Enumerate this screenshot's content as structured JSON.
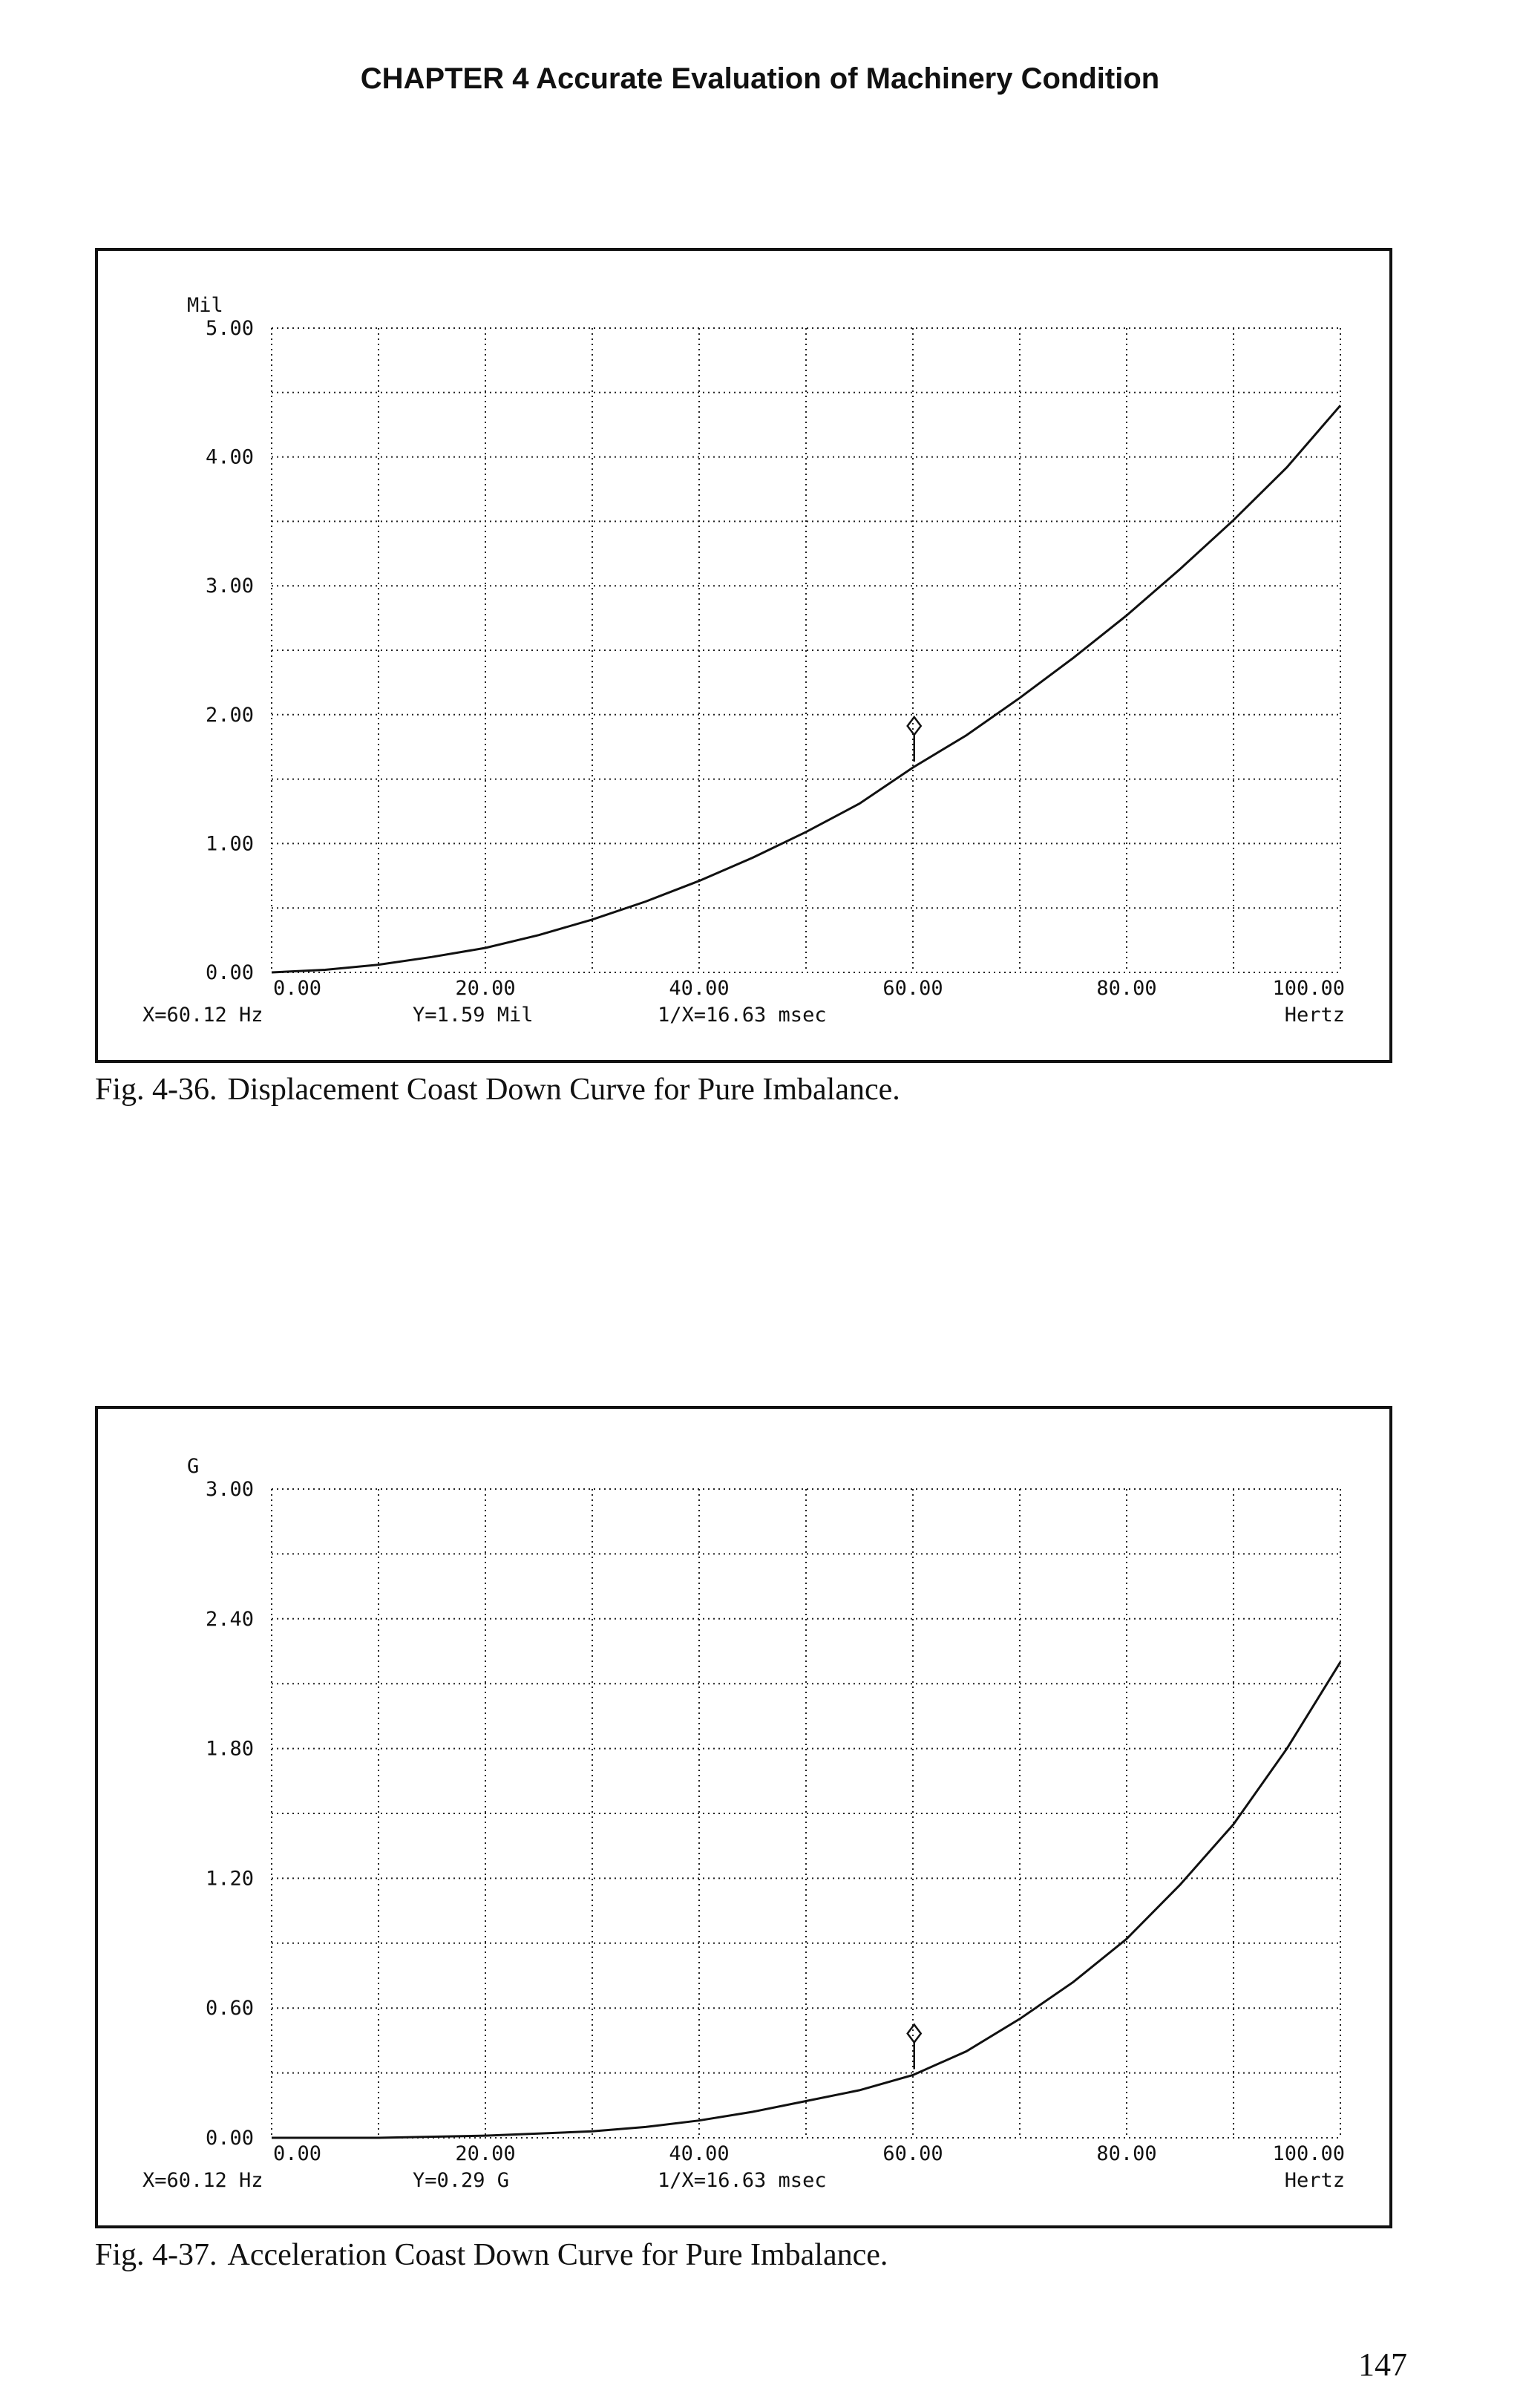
{
  "page": {
    "header": "CHAPTER 4 Accurate Evaluation of Machinery Condition",
    "page_number": "147"
  },
  "figures": [
    {
      "caption_num": "Fig. 4-36.",
      "caption_text": "Displacement Coast Down Curve for Pure Imbalance.",
      "unit": "Mil",
      "readout": {
        "x": "X=60.12 Hz",
        "y": "Y=1.59 Mil",
        "inv": "1/X=16.63 msec"
      }
    },
    {
      "caption_num": "Fig. 4-37.",
      "caption_text": "Acceleration Coast Down Curve for Pure Imbalance.",
      "unit": "G",
      "readout": {
        "x": "X=60.12 Hz",
        "y": "Y=0.29 G",
        "inv": "1/X=16.63 msec"
      }
    }
  ],
  "chart_data": [
    {
      "type": "line",
      "ylabel": "Mil",
      "xlabel": "Hertz",
      "xlim": [
        0,
        100
      ],
      "ylim": [
        0,
        5
      ],
      "x_ticks": [
        "0.00",
        "20.00",
        "40.00",
        "60.00",
        "80.00",
        "100.00"
      ],
      "y_ticks": [
        "0.00",
        "1.00",
        "2.00",
        "3.00",
        "4.00",
        "5.00"
      ],
      "grid": true,
      "cursor": {
        "x": 60.12,
        "y": 1.59
      },
      "series": [
        {
          "x": [
            0,
            5,
            10,
            15,
            20,
            25,
            30,
            35,
            40,
            45,
            50,
            55,
            60,
            65,
            70,
            75,
            80,
            85,
            90,
            95,
            100
          ],
          "values": [
            0.0,
            0.02,
            0.06,
            0.12,
            0.19,
            0.29,
            0.41,
            0.55,
            0.71,
            0.89,
            1.09,
            1.31,
            1.59,
            1.84,
            2.13,
            2.44,
            2.77,
            3.13,
            3.51,
            3.92,
            4.4
          ]
        }
      ]
    },
    {
      "type": "line",
      "ylabel": "G",
      "xlabel": "Hertz",
      "xlim": [
        0,
        100
      ],
      "ylim": [
        0,
        3
      ],
      "x_ticks": [
        "0.00",
        "20.00",
        "40.00",
        "60.00",
        "80.00",
        "100.00"
      ],
      "y_ticks": [
        "0.00",
        "0.60",
        "1.20",
        "1.80",
        "2.40",
        "3.00"
      ],
      "grid": true,
      "cursor": {
        "x": 60.12,
        "y": 0.29
      },
      "series": [
        {
          "x": [
            0,
            10,
            20,
            30,
            35,
            40,
            45,
            50,
            55,
            60,
            65,
            70,
            75,
            80,
            85,
            90,
            95,
            100
          ],
          "values": [
            0.0,
            0.0,
            0.01,
            0.03,
            0.05,
            0.08,
            0.12,
            0.17,
            0.22,
            0.29,
            0.4,
            0.55,
            0.72,
            0.92,
            1.17,
            1.45,
            1.8,
            2.2
          ]
        }
      ]
    }
  ]
}
